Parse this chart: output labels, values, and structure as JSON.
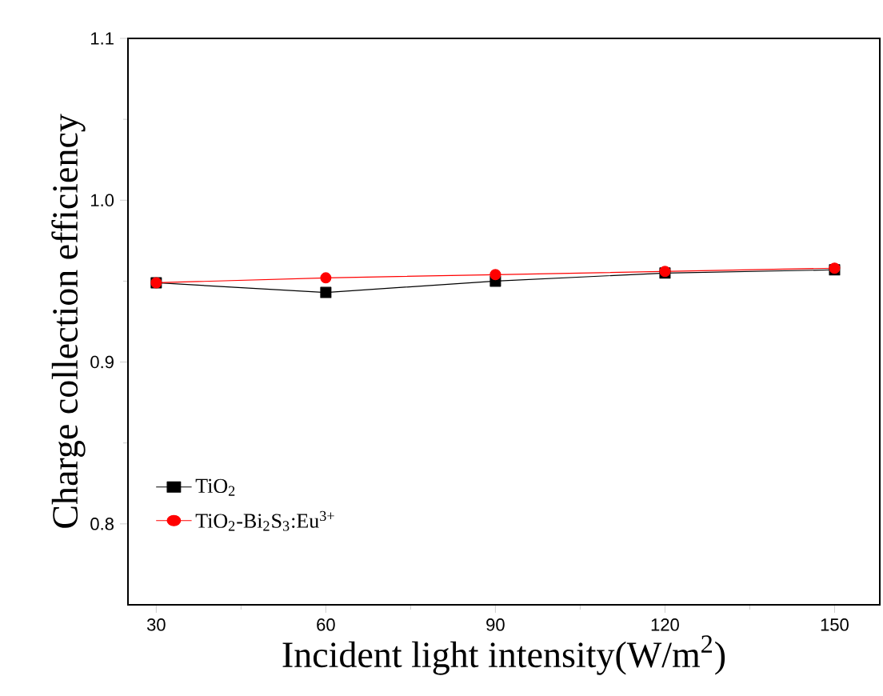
{
  "chart_data": {
    "type": "line",
    "xlabel": "Incident light intensity(W/m$^{2}$)",
    "ylabel": "Charge collection efficiency",
    "x": [
      30,
      60,
      90,
      120,
      150
    ],
    "series": [
      {
        "name": "TiO$_{2}$",
        "color": "#000000",
        "marker": "square",
        "values": [
          0.949,
          0.943,
          0.95,
          0.955,
          0.957
        ]
      },
      {
        "name": "TiO$_{2}$-Bi$_{2}$S$_{3}$:Eu$^{3+}$",
        "color": "#ff0000",
        "marker": "circle",
        "values": [
          0.949,
          0.952,
          0.954,
          0.956,
          0.958
        ]
      }
    ],
    "xlim": [
      25,
      158
    ],
    "ylim": [
      0.75,
      1.1
    ],
    "xticks": [
      30,
      60,
      90,
      120,
      150
    ],
    "yticks": [
      0.8,
      0.9,
      {
        "value": 1,
        "label": "1.0"
      },
      1.1
    ],
    "legend": "bottom left",
    "line_style": "solid"
  }
}
